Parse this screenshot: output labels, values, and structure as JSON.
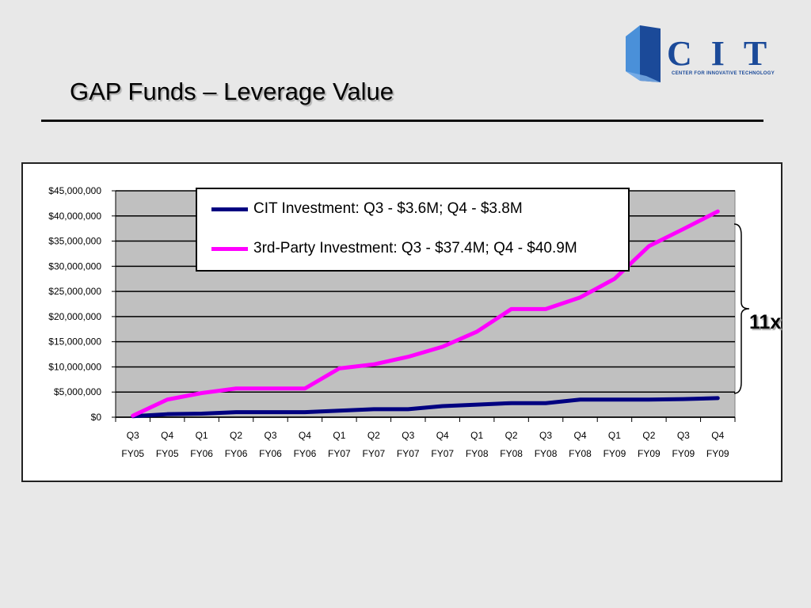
{
  "slide": {
    "title": "GAP Funds – Leverage Value",
    "annotation": "11x"
  },
  "logo": {
    "wordmark": "CIT",
    "tagline": "CENTER FOR INNOVATIVE TECHNOLOGY"
  },
  "colors": {
    "background": "#e8e8e8",
    "plot_area": "#c0c0c0",
    "cit_series": "#000080",
    "third_party_series": "#ff00ff",
    "logo_blue": "#1b4a99"
  },
  "chart_data": {
    "type": "line",
    "categories": [
      [
        "Q3",
        "FY05"
      ],
      [
        "Q4",
        "FY05"
      ],
      [
        "Q1",
        "FY06"
      ],
      [
        "Q2",
        "FY06"
      ],
      [
        "Q3",
        "FY06"
      ],
      [
        "Q4",
        "FY06"
      ],
      [
        "Q1",
        "FY07"
      ],
      [
        "Q2",
        "FY07"
      ],
      [
        "Q3",
        "FY07"
      ],
      [
        "Q4",
        "FY07"
      ],
      [
        "Q1",
        "FY08"
      ],
      [
        "Q2",
        "FY08"
      ],
      [
        "Q3",
        "FY08"
      ],
      [
        "Q4",
        "FY08"
      ],
      [
        "Q1",
        "FY09"
      ],
      [
        "Q2",
        "FY09"
      ],
      [
        "Q3",
        "FY09"
      ],
      [
        "Q4",
        "FY09"
      ]
    ],
    "series": [
      {
        "name": "CIT Investment: Q3 - $3.6M; Q4 - $3.8M",
        "color": "#000080",
        "values": [
          200000,
          600000,
          700000,
          1000000,
          1000000,
          1000000,
          1300000,
          1600000,
          1600000,
          2200000,
          2500000,
          2800000,
          2800000,
          3500000,
          3500000,
          3500000,
          3600000,
          3800000
        ]
      },
      {
        "name": "3rd-Party Investment: Q3 - $37.4M; Q4 - $40.9M",
        "color": "#ff00ff",
        "values": [
          300000,
          3500000,
          4800000,
          5700000,
          5700000,
          5700000,
          9700000,
          10500000,
          12000000,
          14000000,
          17000000,
          21500000,
          21500000,
          23800000,
          27500000,
          34000000,
          37400000,
          40900000
        ]
      }
    ],
    "y_ticks": [
      "$0",
      "$5,000,000",
      "$10,000,000",
      "$15,000,000",
      "$20,000,000",
      "$25,000,000",
      "$30,000,000",
      "$35,000,000",
      "$40,000,000",
      "$45,000,000"
    ],
    "ylim": [
      0,
      45000000
    ],
    "grid": "horizontal",
    "legend": "top-center",
    "title": "",
    "xlabel": "",
    "ylabel": ""
  }
}
